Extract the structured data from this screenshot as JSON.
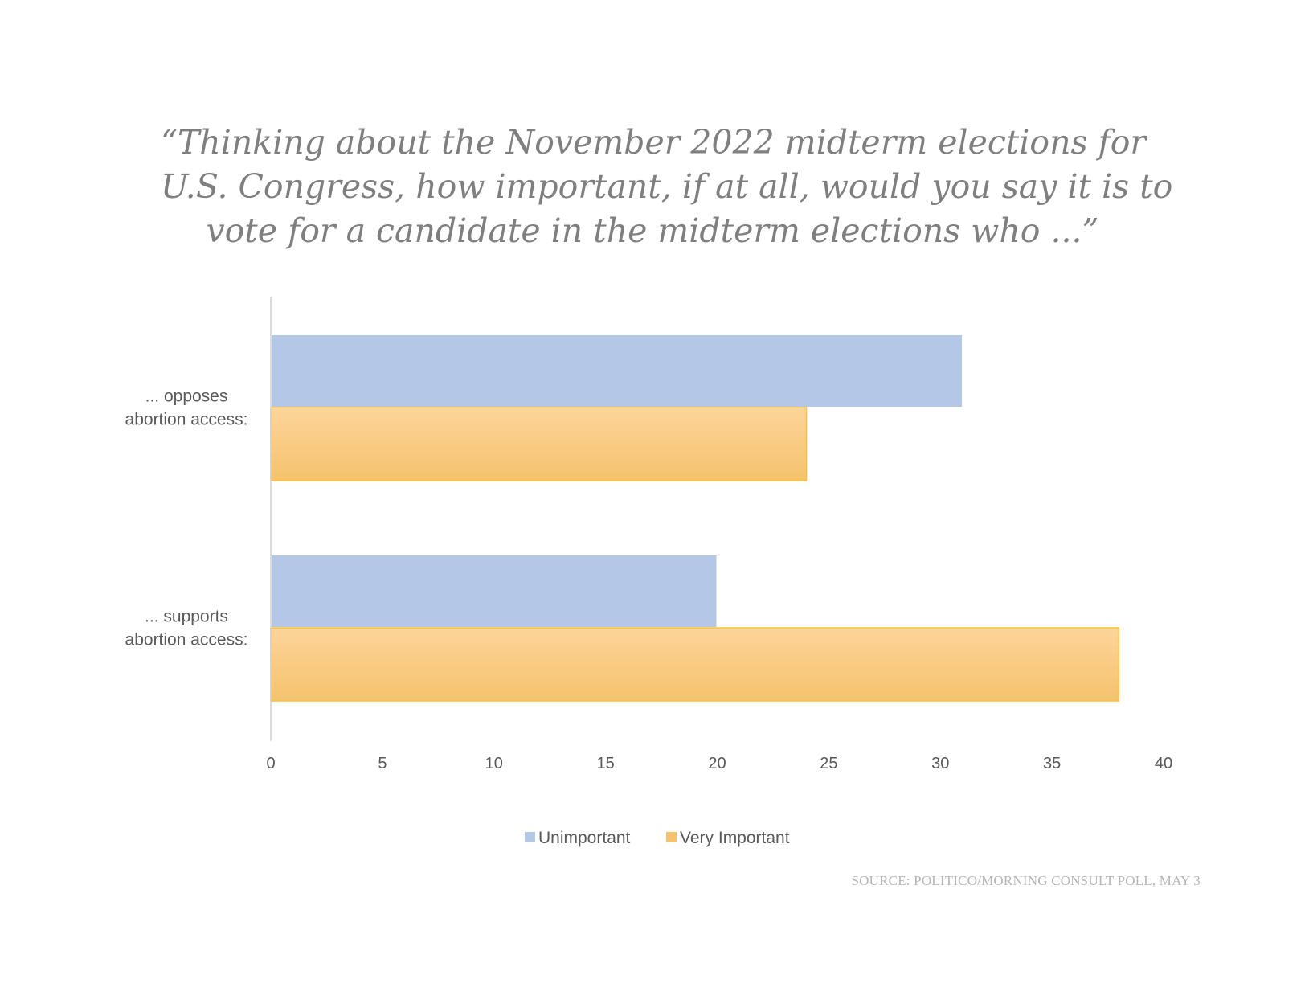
{
  "title_lines": [
    "“Thinking about the November 2022 midterm elections for",
    "U.S. Congress, how important, if  at all, would you say it is to",
    "vote for a candidate in the midterm elections who ...”"
  ],
  "source": "SOURCE: POLITICO/MORNING CONSULT POLL, MAY 3",
  "colors": {
    "unimportant_fill": "#b4c7e7",
    "unimportant_stroke": "#ffffff",
    "very_important_top": "#fdd49a",
    "very_important_bottom": "#f5c36d",
    "very_important_stroke": "#f7c23a",
    "axis": "#d0d0d0"
  },
  "chart_data": {
    "type": "bar",
    "orientation": "horizontal",
    "categories": [
      {
        "lines": [
          "... opposes",
          "abortion access:"
        ]
      },
      {
        "lines": [
          "... supports",
          "abortion access:"
        ]
      }
    ],
    "series": [
      {
        "name": "Unimportant",
        "values": [
          31,
          20
        ]
      },
      {
        "name": "Very Important",
        "values": [
          24,
          38
        ]
      }
    ],
    "xlim": [
      0,
      40
    ],
    "xticks": [
      "0",
      "5",
      "10",
      "15",
      "20",
      "25",
      "30",
      "35",
      "40"
    ],
    "grid": false,
    "legend": "bottom"
  }
}
